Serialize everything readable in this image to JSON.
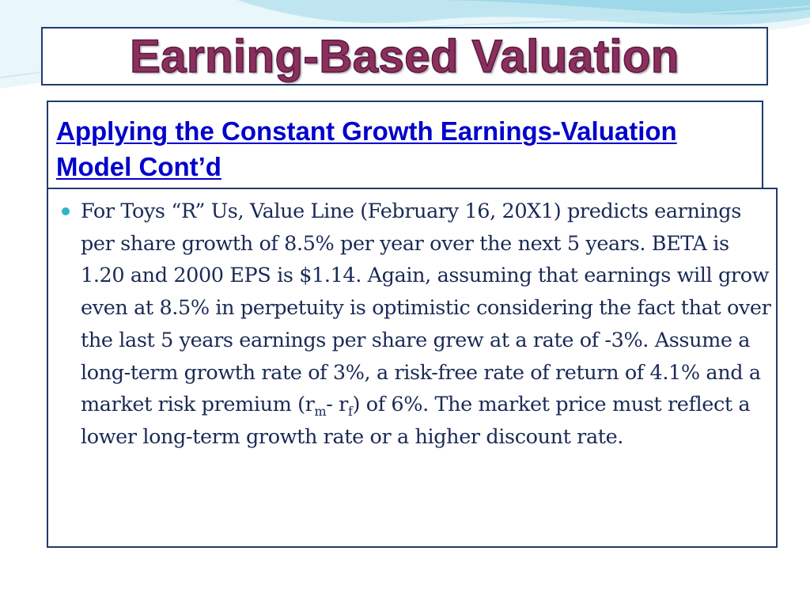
{
  "colors": {
    "title": "#8b2f5e",
    "subtitle": "#0000cc",
    "body_text": "#1a2a55",
    "bullet": "#2fb3c6",
    "border": "#1f3d6b",
    "wave_light": "#d8f0f6",
    "wave_mid": "#aee0ec"
  },
  "title": "Earning-Based Valuation",
  "subtitle": "Applying the Constant Growth Earnings-Valuation Model Cont’d",
  "bullet_icon": "filled-circle-bullet",
  "bullet": {
    "text_before_rm": "For Toys “R” Us, Value Line (February 16, 20X1) predicts earnings per share growth of 8.5% per year over the next 5 years.  BETA is 1.20 and 2000 EPS is $1.14.  Again, assuming that earnings will grow even at 8.5% in perpetuity is optimistic considering the fact that over the last 5 years earnings per share grew at a rate of -3%.  Assume a long-term growth rate of 3%, a risk-free rate of return of 4.1% and a market risk premium (r",
    "rm_sub": "m",
    "rf_prefix": "- r",
    "rf_sub": "f",
    "text_after_rf": ") of 6%.  The market price must reflect a lower long-term growth rate or a higher discount rate."
  }
}
